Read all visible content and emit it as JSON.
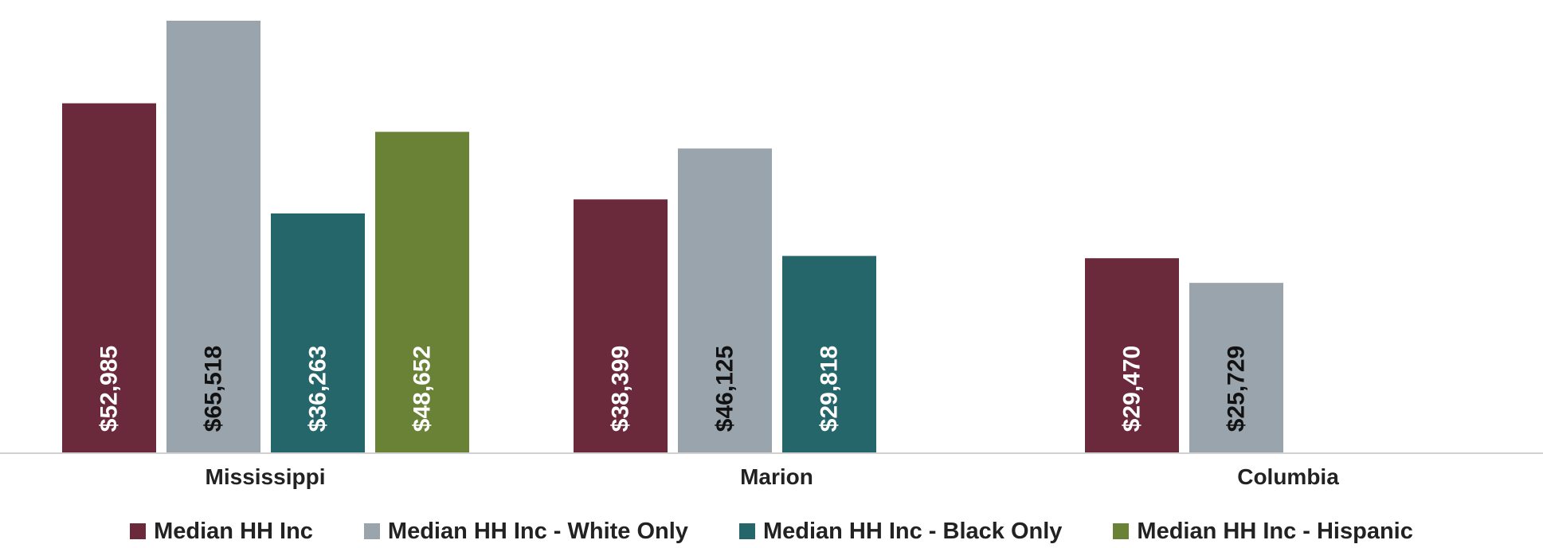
{
  "chart_data": {
    "type": "bar",
    "categories": [
      "Mississippi",
      "Marion",
      "Columbia"
    ],
    "series": [
      {
        "name": "Median HH Inc",
        "color": "#6b2a3b",
        "label_color": "#ffffff",
        "values": [
          52985,
          38399,
          29470
        ],
        "labels": [
          "$52,985",
          "$38,399",
          "$29,470"
        ]
      },
      {
        "name": "Median HH Inc - White Only",
        "color": "#9aa4ad",
        "label_color": "#111111",
        "values": [
          65518,
          46125,
          25729
        ],
        "labels": [
          "$65,518",
          "$46,125",
          "$25,729"
        ]
      },
      {
        "name": "Median HH Inc - Black Only",
        "color": "#25666b",
        "label_color": "#ffffff",
        "values": [
          36263,
          29818,
          null
        ],
        "labels": [
          "$36,263",
          "$29,818",
          ""
        ]
      },
      {
        "name": "Median HH Inc - Hispanic",
        "color": "#6a8236",
        "label_color": "#ffffff",
        "values": [
          48652,
          null,
          null
        ],
        "labels": [
          "$48,652",
          "",
          ""
        ]
      }
    ],
    "ylim": [
      0,
      66000
    ],
    "grid": false,
    "legend_position": "bottom",
    "title": "",
    "xlabel": "",
    "ylabel": ""
  }
}
